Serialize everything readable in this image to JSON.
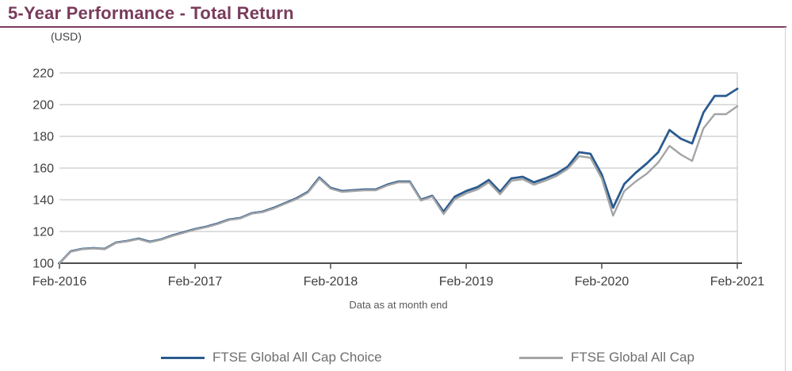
{
  "colors": {
    "title_maroon": "#7A3B5C",
    "rule_maroon": "#7A3B5C",
    "grid_gray": "#C9C9C9",
    "axis_dark": "#4D4D4D",
    "tick_label_gray": "#3F3F3F",
    "caption_gray": "#595959",
    "legend_text_gray": "#6E6E6E"
  },
  "chart_data": {
    "type": "line",
    "title": "5-Year Performance - Total Return",
    "unit_label": "(USD)",
    "caption": "Data as at month end",
    "grid": "horizontal",
    "legend_position": "bottom-center",
    "x_axis": {
      "start": "Feb-2016",
      "end": "Feb-2021",
      "interval": "monthly",
      "tick_labels": [
        "Feb-2016",
        "Feb-2017",
        "Feb-2018",
        "Feb-2019",
        "Feb-2020",
        "Feb-2021"
      ]
    },
    "y_axis": {
      "range": [
        100,
        220
      ],
      "ticks": [
        100,
        120,
        140,
        160,
        180,
        200,
        220
      ]
    },
    "series": [
      {
        "name": "FTSE Global All Cap Choice",
        "color": "#2A5B8F",
        "values": [
          100,
          107.5,
          109,
          109.5,
          109,
          113,
          114,
          115.5,
          113.5,
          115,
          117.5,
          119.5,
          121.5,
          123,
          125,
          127.5,
          128.5,
          131.5,
          132.5,
          135,
          138,
          141,
          145,
          154,
          147.5,
          145.5,
          146,
          146.5,
          146.5,
          149.5,
          151.5,
          151.5,
          140,
          142.5,
          132.5,
          142,
          145.5,
          148,
          152.5,
          145,
          153.5,
          154.5,
          151,
          153.5,
          156.5,
          161,
          170,
          169,
          156,
          135,
          150,
          157,
          163,
          170,
          184,
          178.5,
          175.5,
          195,
          205.5,
          205.5,
          210
        ]
      },
      {
        "name": "FTSE Global All Cap",
        "color": "#A3A4A6",
        "values": [
          100,
          107.3,
          108.8,
          109.3,
          108.8,
          112.8,
          113.8,
          115.2,
          113.2,
          114.8,
          117.2,
          119.2,
          121.2,
          122.7,
          124.7,
          127.2,
          128.2,
          131.2,
          132.2,
          134.6,
          137.6,
          140.5,
          144.5,
          153.4,
          147,
          145,
          145.5,
          146,
          146,
          149,
          151,
          151,
          139.5,
          142,
          131,
          140.5,
          144,
          146.5,
          151,
          143.5,
          152,
          153,
          149.5,
          152,
          155,
          159.5,
          167.5,
          166.5,
          153.5,
          130,
          145.5,
          151.5,
          156.5,
          163.5,
          174,
          168.5,
          164.5,
          185,
          194,
          194,
          199
        ]
      }
    ]
  }
}
